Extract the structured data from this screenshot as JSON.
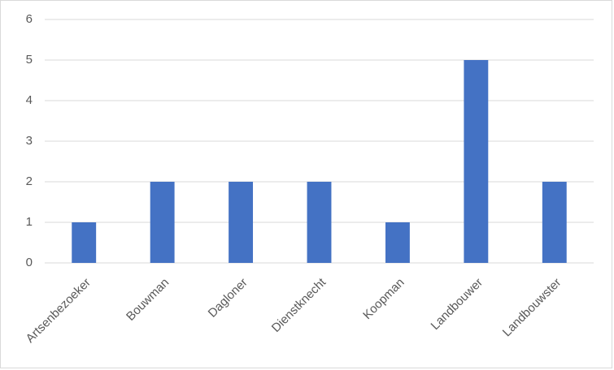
{
  "chart_data": {
    "type": "bar",
    "categories": [
      "Artsenbezoeker",
      "Bouwman",
      "Dagloner",
      "Dienstknecht",
      "Koopman",
      "Landbouwer",
      "Landbouwster"
    ],
    "values": [
      1,
      2,
      2,
      2,
      1,
      5,
      2
    ],
    "color": "#4472c4",
    "ylim": [
      0,
      6
    ],
    "yticks": [
      0,
      1,
      2,
      3,
      4,
      5,
      6
    ],
    "grid": true
  }
}
